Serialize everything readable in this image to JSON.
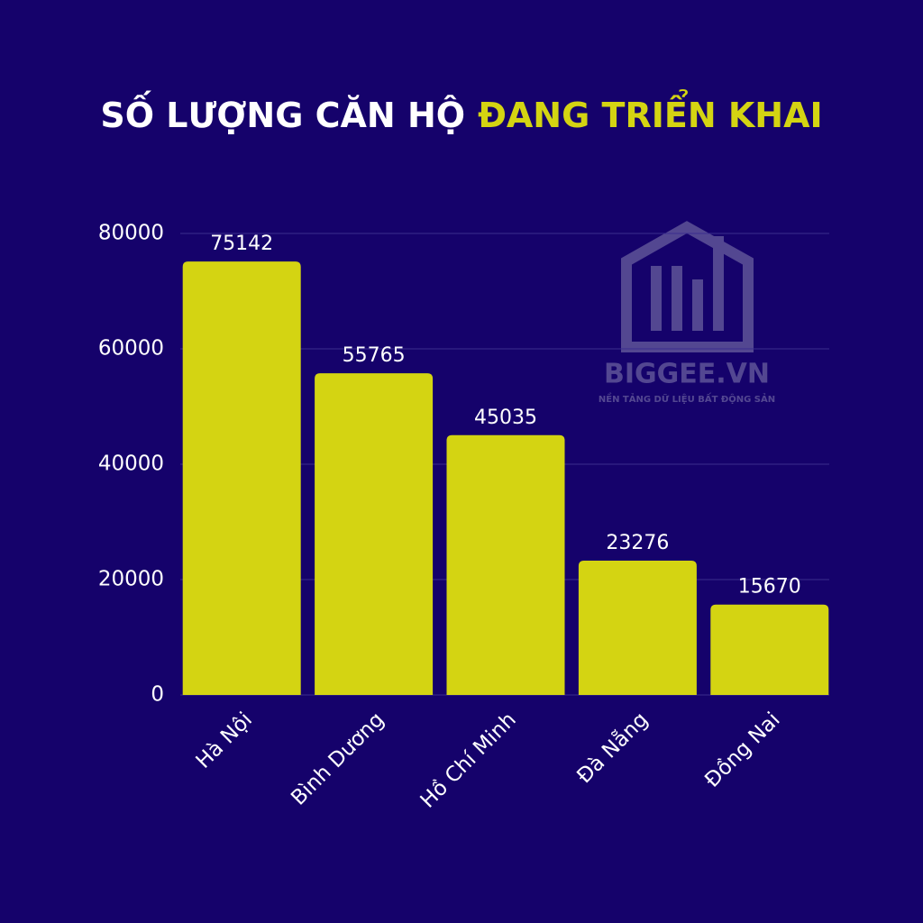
{
  "chart_data": {
    "type": "bar",
    "title": "SỐ LƯỢNG CĂN HỘ",
    "title_highlight": "ĐANG TRIỂN KHAI",
    "categories": [
      "Hà Nội",
      "Bình Dương",
      "Hồ Chí Minh",
      "Đà Nẵng",
      "Đồng Nai"
    ],
    "values": [
      75142,
      55765,
      45035,
      23276,
      15670
    ],
    "color": "#d4d412",
    "ylim": [
      0,
      80000
    ],
    "yticks": [
      0,
      20000,
      40000,
      60000,
      80000
    ],
    "grid": true,
    "watermark": {
      "name": "BIGGEE.VN",
      "tagline": "NỀN TẢNG DỮ LIỆU BẤT ĐỘNG SẢN"
    }
  }
}
